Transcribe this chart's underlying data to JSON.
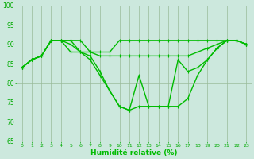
{
  "bg_color": "#cce8dd",
  "grid_color": "#99bb99",
  "line_color": "#00bb00",
  "marker_color": "#00bb00",
  "xlabel": "Humidité relative (%)",
  "xlabel_color": "#00bb00",
  "tick_color": "#00aa00",
  "ylim": [
    65,
    100
  ],
  "xlim": [
    -0.5,
    23.5
  ],
  "yticks": [
    65,
    70,
    75,
    80,
    85,
    90,
    95,
    100
  ],
  "xticks": [
    0,
    1,
    2,
    3,
    4,
    5,
    6,
    7,
    8,
    9,
    10,
    11,
    12,
    13,
    14,
    15,
    16,
    17,
    18,
    19,
    20,
    21,
    22,
    23
  ],
  "series": [
    [
      84,
      86,
      87,
      91,
      91,
      90,
      88,
      86,
      82,
      78,
      74,
      73,
      74,
      74,
      74,
      74,
      74,
      76,
      82,
      86,
      89,
      91,
      91,
      90
    ],
    [
      84,
      86,
      87,
      91,
      91,
      91,
      91,
      88,
      88,
      88,
      91,
      91,
      91,
      91,
      91,
      91,
      91,
      91,
      91,
      91,
      91,
      91,
      91,
      90
    ],
    [
      84,
      86,
      87,
      91,
      91,
      88,
      88,
      88,
      87,
      87,
      87,
      87,
      87,
      87,
      87,
      87,
      87,
      87,
      88,
      89,
      90,
      91,
      91,
      90
    ],
    [
      84,
      86,
      87,
      91,
      91,
      91,
      88,
      87,
      83,
      78,
      74,
      73,
      82,
      74,
      74,
      74,
      86,
      83,
      84,
      86,
      89,
      91,
      91,
      90
    ]
  ],
  "linewidth": 1.0,
  "marker_size": 2.5,
  "figsize": [
    3.2,
    2.0
  ],
  "dpi": 100
}
